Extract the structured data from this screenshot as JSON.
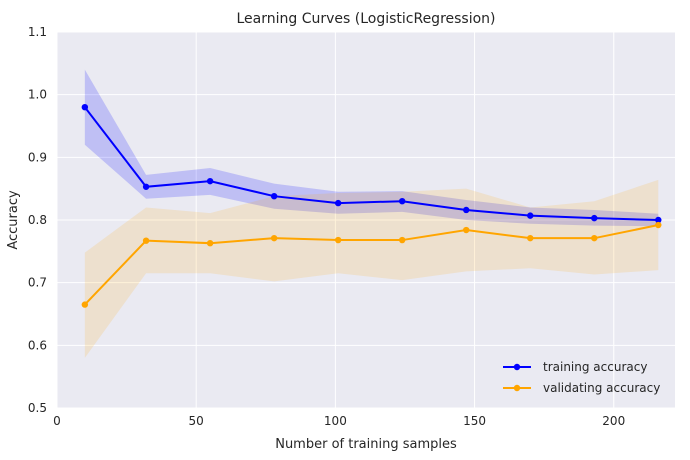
{
  "chart_data": {
    "type": "line",
    "title": "Learning Curves (LogisticRegression)",
    "xlabel": "Number of training samples",
    "ylabel": "Accuracy",
    "xlim": [
      0,
      222
    ],
    "ylim": [
      0.5,
      1.1
    ],
    "xticks": [
      0,
      50,
      100,
      150,
      200
    ],
    "yticks": [
      0.5,
      0.6,
      0.7,
      0.8,
      0.9,
      1.0,
      1.1
    ],
    "ytick_labels": [
      "0.5",
      "0.6",
      "0.7",
      "0.8",
      "0.9",
      "1.0",
      "1.1"
    ],
    "grid": true,
    "legend_position": "bottom-right",
    "x": [
      10,
      32,
      55,
      78,
      101,
      124,
      147,
      170,
      193,
      216
    ],
    "series": [
      {
        "name": "training accuracy",
        "color": "#0000ff",
        "values": [
          0.98,
          0.853,
          0.862,
          0.838,
          0.827,
          0.83,
          0.816,
          0.807,
          0.803,
          0.8
        ],
        "upper": [
          1.04,
          0.872,
          0.883,
          0.858,
          0.845,
          0.846,
          0.832,
          0.82,
          0.816,
          0.81
        ],
        "lower": [
          0.92,
          0.834,
          0.84,
          0.818,
          0.81,
          0.813,
          0.8,
          0.794,
          0.791,
          0.79
        ]
      },
      {
        "name": "validating accuracy",
        "color": "#ffa500",
        "values": [
          0.665,
          0.767,
          0.763,
          0.771,
          0.768,
          0.768,
          0.784,
          0.771,
          0.771,
          0.792
        ],
        "upper": [
          0.748,
          0.82,
          0.811,
          0.838,
          0.843,
          0.845,
          0.85,
          0.82,
          0.83,
          0.864
        ],
        "lower": [
          0.58,
          0.715,
          0.715,
          0.702,
          0.715,
          0.704,
          0.718,
          0.723,
          0.713,
          0.72
        ]
      }
    ]
  }
}
